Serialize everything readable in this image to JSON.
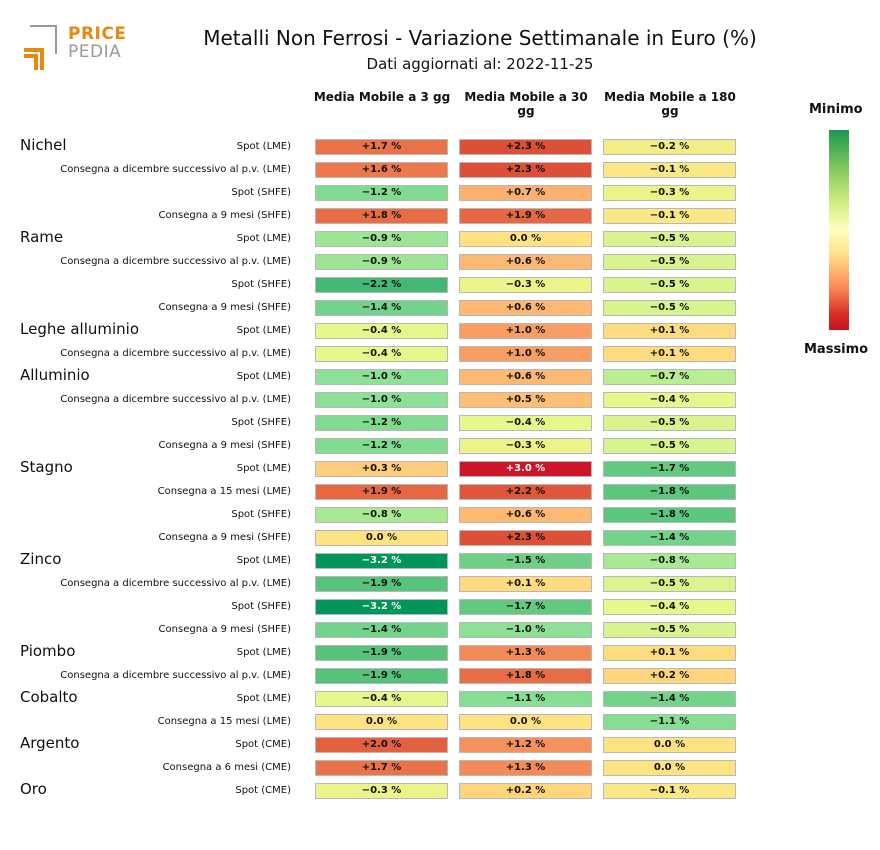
{
  "logo": {
    "top": "PRICE",
    "bottom": "PEDIA"
  },
  "title": "Metalli Non Ferrosi - Variazione Settimanale in Euro (%)",
  "subtitle": "Dati aggiornati al: 2022-11-25",
  "columns": [
    "Media Mobile a 3 gg",
    "Media Mobile a 30 gg",
    "Media Mobile a 180 gg"
  ],
  "legend": {
    "min_label": "Minimo",
    "max_label": "Massimo"
  },
  "chart_data": {
    "type": "heatmap",
    "title": "Metalli Non Ferrosi - Variazione Settimanale in Euro (%)",
    "columns": [
      "Media Mobile a 3 gg",
      "Media Mobile a 30 gg",
      "Media Mobile a 180 gg"
    ],
    "vmin": -3.2,
    "vmax": 3.0,
    "groups": [
      {
        "name": "Nichel",
        "rows": [
          {
            "label": "Spot (LME)",
            "values": [
              1.7,
              2.3,
              -0.2
            ]
          },
          {
            "label": "Consegna a dicembre successivo al p.v. (LME)",
            "values": [
              1.6,
              2.3,
              -0.1
            ]
          },
          {
            "label": "Spot (SHFE)",
            "values": [
              -1.2,
              0.7,
              -0.3
            ]
          },
          {
            "label": "Consegna a 9 mesi (SHFE)",
            "values": [
              1.8,
              1.9,
              -0.1
            ]
          }
        ]
      },
      {
        "name": "Rame",
        "rows": [
          {
            "label": "Spot (LME)",
            "values": [
              -0.9,
              0.0,
              -0.5
            ]
          },
          {
            "label": "Consegna a dicembre successivo al p.v. (LME)",
            "values": [
              -0.9,
              0.6,
              -0.5
            ]
          },
          {
            "label": "Spot (SHFE)",
            "values": [
              -2.2,
              -0.3,
              -0.5
            ]
          },
          {
            "label": "Consegna a 9 mesi (SHFE)",
            "values": [
              -1.4,
              0.6,
              -0.5
            ]
          }
        ]
      },
      {
        "name": "Leghe alluminio",
        "rows": [
          {
            "label": "Spot (LME)",
            "values": [
              -0.4,
              1.0,
              0.1
            ]
          },
          {
            "label": "Consegna a dicembre successivo al p.v. (LME)",
            "values": [
              -0.4,
              1.0,
              0.1
            ]
          }
        ]
      },
      {
        "name": "Alluminio",
        "rows": [
          {
            "label": "Spot (LME)",
            "values": [
              -1.0,
              0.6,
              -0.7
            ]
          },
          {
            "label": "Consegna a dicembre successivo al p.v. (LME)",
            "values": [
              -1.0,
              0.5,
              -0.4
            ]
          },
          {
            "label": "Spot (SHFE)",
            "values": [
              -1.2,
              -0.4,
              -0.5
            ]
          },
          {
            "label": "Consegna a 9 mesi (SHFE)",
            "values": [
              -1.2,
              -0.3,
              -0.5
            ]
          }
        ]
      },
      {
        "name": "Stagno",
        "rows": [
          {
            "label": "Spot (LME)",
            "values": [
              0.3,
              3.0,
              -1.7
            ]
          },
          {
            "label": "Consegna a 15 mesi (LME)",
            "values": [
              1.9,
              2.2,
              -1.8
            ]
          },
          {
            "label": "Spot (SHFE)",
            "values": [
              -0.8,
              0.6,
              -1.8
            ]
          },
          {
            "label": "Consegna a 9 mesi (SHFE)",
            "values": [
              0.0,
              2.3,
              -1.4
            ]
          }
        ]
      },
      {
        "name": "Zinco",
        "rows": [
          {
            "label": "Spot (LME)",
            "values": [
              -3.2,
              -1.5,
              -0.8
            ]
          },
          {
            "label": "Consegna a dicembre successivo al p.v. (LME)",
            "values": [
              -1.9,
              0.1,
              -0.5
            ]
          },
          {
            "label": "Spot (SHFE)",
            "values": [
              -3.2,
              -1.7,
              -0.4
            ]
          },
          {
            "label": "Consegna a 9 mesi (SHFE)",
            "values": [
              -1.4,
              -1.0,
              -0.5
            ]
          }
        ]
      },
      {
        "name": "Piombo",
        "rows": [
          {
            "label": "Spot (LME)",
            "values": [
              -1.9,
              1.3,
              0.1
            ]
          },
          {
            "label": "Consegna a dicembre successivo al p.v. (LME)",
            "values": [
              -1.9,
              1.8,
              0.2
            ]
          }
        ]
      },
      {
        "name": "Cobalto",
        "rows": [
          {
            "label": "Spot (LME)",
            "values": [
              -0.4,
              -1.1,
              -1.4
            ]
          },
          {
            "label": "Consegna a 15 mesi (LME)",
            "values": [
              0.0,
              0.0,
              -1.1
            ]
          }
        ]
      },
      {
        "name": "Argento",
        "rows": [
          {
            "label": "Spot (CME)",
            "values": [
              2.0,
              1.2,
              0.0
            ]
          },
          {
            "label": "Consegna a 6 mesi (CME)",
            "values": [
              1.7,
              1.3,
              0.0
            ]
          }
        ]
      },
      {
        "name": "Oro",
        "rows": [
          {
            "label": "Spot (CME)",
            "values": [
              -0.3,
              0.2,
              -0.1
            ]
          }
        ]
      }
    ]
  }
}
